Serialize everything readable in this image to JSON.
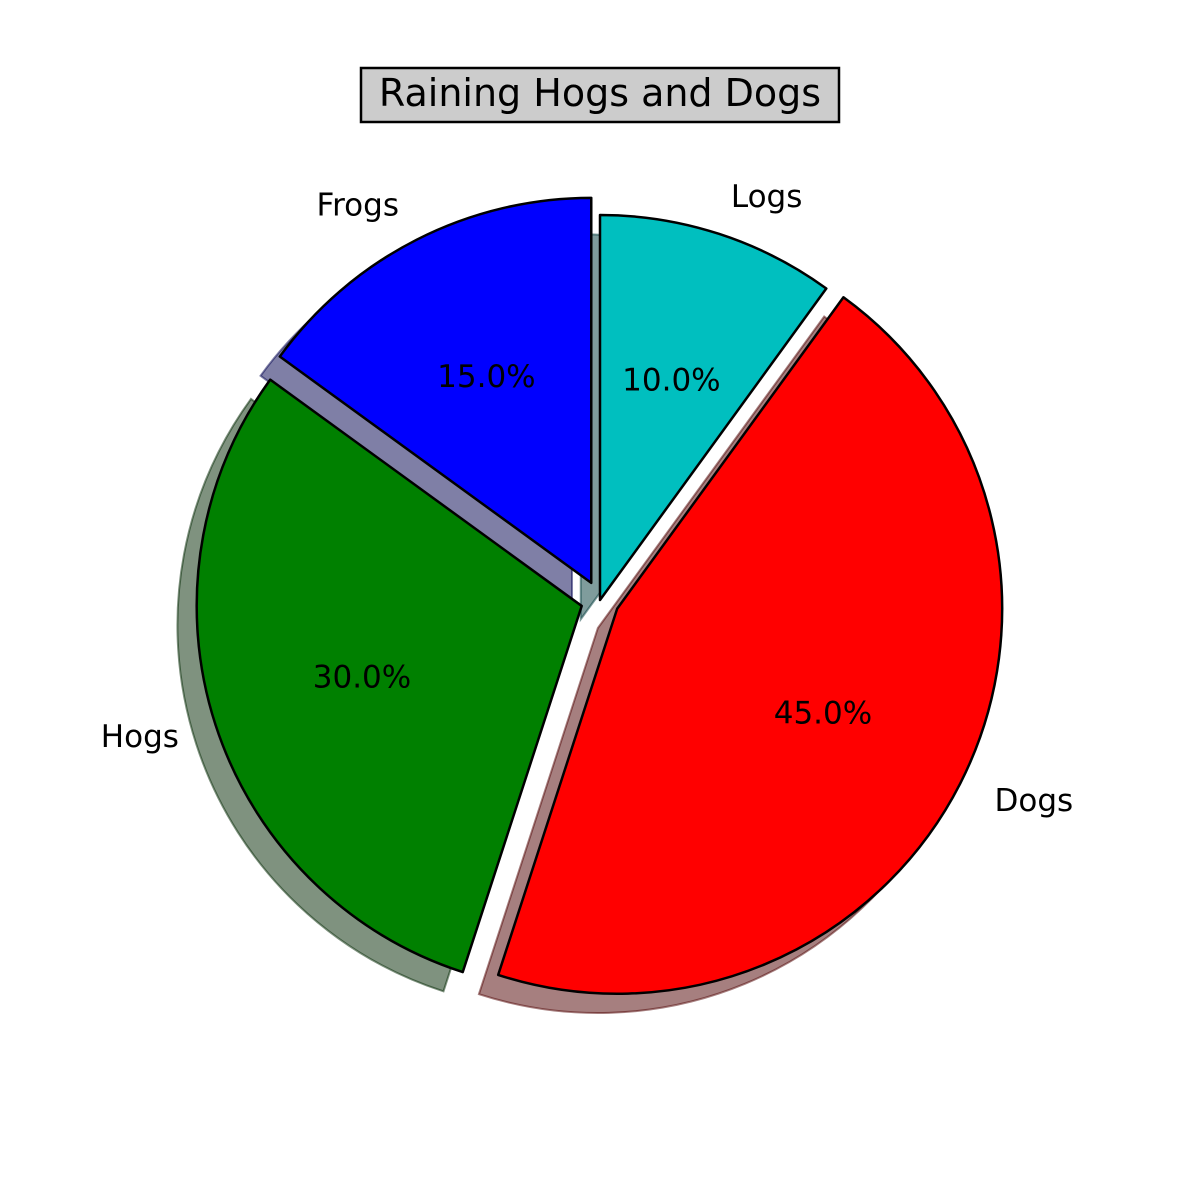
{
  "chart_data": {
    "type": "pie",
    "title": "Raining Hogs and Dogs",
    "start_angle_deg": 90,
    "direction": "counterclockwise",
    "shadow": true,
    "slices": [
      {
        "label": "Frogs",
        "value": 15,
        "pct_label": "15.0%",
        "color": "#0000ff",
        "explode": 0.05
      },
      {
        "label": "Hogs",
        "value": 30,
        "pct_label": "30.0%",
        "color": "#008000",
        "explode": 0.05
      },
      {
        "label": "Dogs",
        "value": 45,
        "pct_label": "45.0%",
        "color": "#ff0000",
        "explode": 0.05
      },
      {
        "label": "Logs",
        "value": 10,
        "pct_label": "10.0%",
        "color": "#00bfbf",
        "explode": 0
      }
    ]
  }
}
